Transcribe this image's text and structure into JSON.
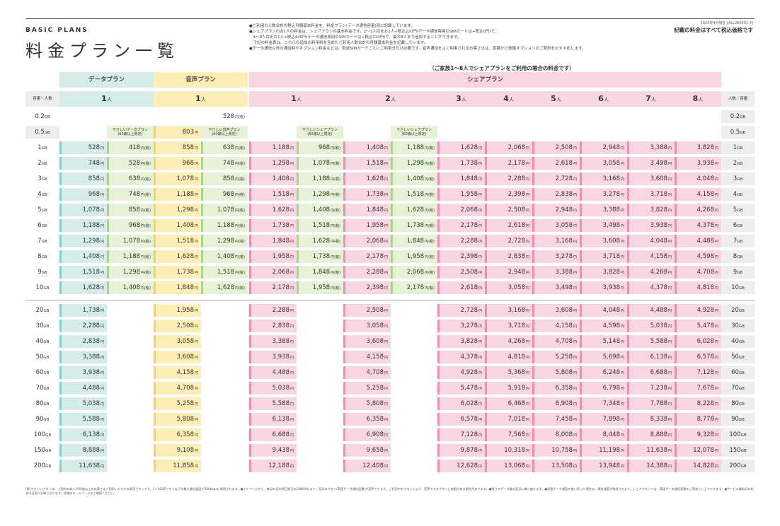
{
  "header": {
    "brand": "BASIC PLANS",
    "title": "料金プラン一覧",
    "date_note": "2024年4月現在 [ALL260401-4]",
    "tax_note": "記載の料金はすべて税込価格です",
    "notes": [
      "●ご利用の人数合計の税込月額基本料金を、料金プラン(データ通信容量)別に記載しています。",
      "●シェアプランのお1人の料金は、シェアプランの基本料金です。2～3人目をお1人+税込220円(データ通信専用のSIMカードは+税込0円)で、",
      "　4～8人目をお1人+税込440円(データ通信専用のSIMカードは+税込220円)で、最大8人まで追加することができます。",
      "　下記の料金表は、これらの追加の利用料を含めたご利用人数合計の月額基本料金を記載しています。",
      "●データ通信以外の通話料やオプション料金などは、別途SIMカードごとにご利用分だけ必要です。音声通話をよく利用されるお客さまは、定額かけ放題オプションのご契約をおすすめします。"
    ],
    "share_caption": "（ご家族1～8人でシェアプランをご利用の場合の料金です）"
  },
  "colors": {
    "data": "#d5ece8",
    "voice": "#fdeeb6",
    "share": "#fad6e3",
    "data_strip": "#8ecfc7",
    "voice_strip": "#f6d168",
    "share_strip": "#ee8fb1",
    "green": "#e6f2d5",
    "green_strip": "#a9d48b"
  },
  "table": {
    "group_labels": {
      "data": "データプラン",
      "voice": "音声プラン",
      "share": "シェアプラン"
    },
    "corner_left": "容量＼人数",
    "corner_right": "人数／容量",
    "person_suffix": "人",
    "headers": [
      "1",
      "1",
      "1",
      "2",
      "3",
      "4",
      "5",
      "6",
      "7",
      "8"
    ],
    "yen": "円",
    "tax_mark": "円(税)",
    "yasashi": {
      "data": [
        "やさしいデータプラン",
        "(60歳以上限定)"
      ],
      "voice": [
        "やさしい音声プラン",
        "(60歳以上限定)"
      ],
      "share1": [
        "やさしいシェアプラン",
        "(60歳以上限定)"
      ],
      "share2": [
        "やさしいシェアプラン",
        "(60歳以上限定)"
      ]
    },
    "row_0_2": {
      "label": "0.2",
      "unit": "GB",
      "voice": "528"
    },
    "row_0_5": {
      "label": "0.5",
      "unit": "GB",
      "voice": "803"
    },
    "rows": [
      {
        "cap": "1",
        "unit": "GB",
        "d": "528",
        "dy": "418",
        "v": "858",
        "vy": "638",
        "s1": "1,188",
        "s1y": "968",
        "s2": "1,408",
        "s2y": "1,188",
        "s3": "1,628",
        "s4": "2,068",
        "s5": "2,508",
        "s6": "2,948",
        "s7": "3,388",
        "s8": "3,828"
      },
      {
        "cap": "2",
        "unit": "GB",
        "d": "748",
        "dy": "528",
        "v": "968",
        "vy": "748",
        "s1": "1,298",
        "s1y": "1,078",
        "s2": "1,518",
        "s2y": "1,298",
        "s3": "1,738",
        "s4": "2,178",
        "s5": "2,618",
        "s6": "3,058",
        "s7": "3,498",
        "s8": "3,938"
      },
      {
        "cap": "3",
        "unit": "GB",
        "d": "858",
        "dy": "638",
        "v": "1,078",
        "vy": "858",
        "s1": "1,408",
        "s1y": "1,188",
        "s2": "1,628",
        "s2y": "1,408",
        "s3": "1,848",
        "s4": "2,288",
        "s5": "2,728",
        "s6": "3,168",
        "s7": "3,608",
        "s8": "4,048"
      },
      {
        "cap": "4",
        "unit": "GB",
        "d": "968",
        "dy": "748",
        "v": "1,188",
        "vy": "968",
        "s1": "1,518",
        "s1y": "1,298",
        "s2": "1,738",
        "s2y": "1,518",
        "s3": "1,958",
        "s4": "2,398",
        "s5": "2,838",
        "s6": "3,278",
        "s7": "3,718",
        "s8": "4,158"
      },
      {
        "cap": "5",
        "unit": "GB",
        "d": "1,078",
        "dy": "858",
        "v": "1,298",
        "vy": "1,078",
        "s1": "1,628",
        "s1y": "1,408",
        "s2": "1,848",
        "s2y": "1,628",
        "s3": "2,068",
        "s4": "2,508",
        "s5": "2,948",
        "s6": "3,388",
        "s7": "3,828",
        "s8": "4,268"
      },
      {
        "cap": "6",
        "unit": "GB",
        "d": "1,188",
        "dy": "968",
        "v": "1,408",
        "vy": "1,188",
        "s1": "1,738",
        "s1y": "1,518",
        "s2": "1,958",
        "s2y": "1,738",
        "s3": "2,178",
        "s4": "2,618",
        "s5": "3,058",
        "s6": "3,498",
        "s7": "3,938",
        "s8": "4,378"
      },
      {
        "cap": "7",
        "unit": "GB",
        "d": "1,298",
        "dy": "1,078",
        "v": "1,518",
        "vy": "1,298",
        "s1": "1,848",
        "s1y": "1,628",
        "s2": "2,068",
        "s2y": "1,848",
        "s3": "2,288",
        "s4": "2,728",
        "s5": "3,168",
        "s6": "3,608",
        "s7": "4,048",
        "s8": "4,488"
      },
      {
        "cap": "8",
        "unit": "GB",
        "d": "1,408",
        "dy": "1,188",
        "v": "1,628",
        "vy": "1,408",
        "s1": "1,958",
        "s1y": "1,738",
        "s2": "2,178",
        "s2y": "1,958",
        "s3": "2,398",
        "s4": "2,838",
        "s5": "3,278",
        "s6": "3,718",
        "s7": "4,158",
        "s8": "4,598"
      },
      {
        "cap": "9",
        "unit": "GB",
        "d": "1,518",
        "dy": "1,298",
        "v": "1,738",
        "vy": "1,518",
        "s1": "2,068",
        "s1y": "1,848",
        "s2": "2,288",
        "s2y": "2,068",
        "s3": "2,508",
        "s4": "2,948",
        "s5": "3,388",
        "s6": "3,828",
        "s7": "4,268",
        "s8": "4,708"
      },
      {
        "cap": "10",
        "unit": "GB",
        "d": "1,628",
        "dy": "1,408",
        "v": "1,848",
        "vy": "1,628",
        "s1": "2,178",
        "s1y": "1,958",
        "s2": "2,398",
        "s2y": "2,178",
        "s3": "2,618",
        "s4": "3,058",
        "s5": "3,498",
        "s6": "3,938",
        "s7": "4,378",
        "s8": "4,818"
      },
      {
        "cap": "20",
        "unit": "GB",
        "d": "1,738",
        "v": "1,958",
        "s1": "2,288",
        "s2": "2,508",
        "s3": "2,728",
        "s4": "3,168",
        "s5": "3,608",
        "s6": "4,048",
        "s7": "4,488",
        "s8": "4,928"
      },
      {
        "cap": "30",
        "unit": "GB",
        "d": "2,288",
        "v": "2,508",
        "s1": "2,838",
        "s2": "3,058",
        "s3": "3,278",
        "s4": "3,718",
        "s5": "4,158",
        "s6": "4,598",
        "s7": "5,038",
        "s8": "5,478"
      },
      {
        "cap": "40",
        "unit": "GB",
        "d": "2,838",
        "v": "3,058",
        "s1": "3,388",
        "s2": "3,608",
        "s3": "3,828",
        "s4": "4,268",
        "s5": "4,708",
        "s6": "5,148",
        "s7": "5,588",
        "s8": "6,028"
      },
      {
        "cap": "50",
        "unit": "GB",
        "d": "3,388",
        "v": "3,608",
        "s1": "3,938",
        "s2": "4,158",
        "s3": "4,378",
        "s4": "4,818",
        "s5": "5,258",
        "s6": "5,698",
        "s7": "6,138",
        "s8": "6,578"
      },
      {
        "cap": "60",
        "unit": "GB",
        "d": "3,938",
        "v": "4,158",
        "s1": "4,488",
        "s2": "4,708",
        "s3": "4,928",
        "s4": "5,368",
        "s5": "5,808",
        "s6": "6,248",
        "s7": "6,688",
        "s8": "7,128"
      },
      {
        "cap": "70",
        "unit": "GB",
        "d": "4,488",
        "v": "4,708",
        "s1": "5,038",
        "s2": "5,258",
        "s3": "5,478",
        "s4": "5,918",
        "s5": "6,358",
        "s6": "6,798",
        "s7": "7,238",
        "s8": "7,678"
      },
      {
        "cap": "80",
        "unit": "GB",
        "d": "5,038",
        "v": "5,258",
        "s1": "5,588",
        "s2": "5,808",
        "s3": "6,028",
        "s4": "6,468",
        "s5": "6,908",
        "s6": "7,348",
        "s7": "7,788",
        "s8": "8,228"
      },
      {
        "cap": "90",
        "unit": "GB",
        "d": "5,588",
        "v": "5,808",
        "s1": "6,138",
        "s2": "6,358",
        "s3": "6,578",
        "s4": "7,018",
        "s5": "7,458",
        "s6": "7,898",
        "s7": "8,338",
        "s8": "8,778"
      },
      {
        "cap": "100",
        "unit": "GB",
        "d": "6,138",
        "v": "6,358",
        "s1": "6,688",
        "s2": "6,908",
        "s3": "7,128",
        "s4": "7,568",
        "s5": "8,008",
        "s6": "8,448",
        "s7": "8,888",
        "s8": "9,328"
      },
      {
        "cap": "150",
        "unit": "GB",
        "d": "8,888",
        "v": "9,108",
        "s1": "9,438",
        "s2": "9,658",
        "s3": "9,878",
        "s4": "10,318",
        "s5": "10,758",
        "s6": "11,198",
        "s7": "11,638",
        "s8": "12,078"
      },
      {
        "cap": "200",
        "unit": "GB",
        "d": "11,638",
        "v": "11,858",
        "s1": "12,188",
        "s2": "12,408",
        "s3": "12,628",
        "s4": "13,068",
        "s5": "13,508",
        "s6": "13,948",
        "s7": "14,388",
        "s8": "14,828"
      }
    ]
  },
  "footer": "[税]やさしいプランは、ご契約の本人が60歳以上のお客さまご利用いただける専用プランです。1～10GBプラン以下の最大通信速度が500kbpsに制限されます。●マイページから、毎月の月末締日前日の18時59分まで、翌月のプラン(高速データ通信容量)が変更できます。ご利用中のプランにより、変更できるプランに制限がある場合があります。●残りのデータ量は翌月に繰り越せます。●高速データ通信を使い切った場合は、通信速度が制限されます。シェアプランでは、高速データ通信容量をご家族でシェアできます。●サービス開始月の料金は日割り計算となります。詳細はホームページをご確認ください。"
}
